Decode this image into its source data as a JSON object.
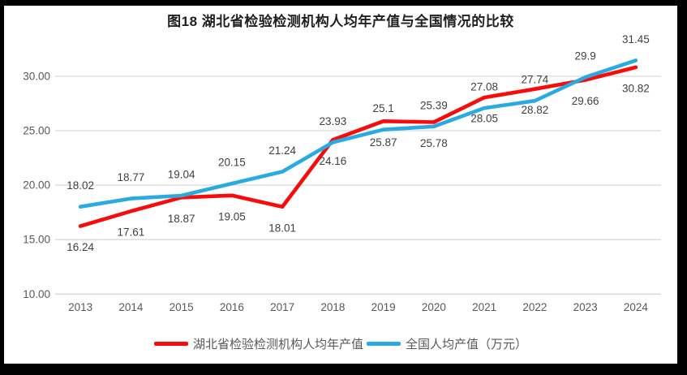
{
  "chart_data": {
    "type": "line",
    "title": "图18 湖北省检验检测机构人均年产值与全国情况的比较",
    "categories": [
      "2013",
      "2014",
      "2015",
      "2016",
      "2017",
      "2018",
      "2019",
      "2020",
      "2021",
      "2022",
      "2023",
      "2024"
    ],
    "series": [
      {
        "name": "湖北省检验检测机构人均年产值",
        "color": "#F90B0B",
        "label_position": "below",
        "values": [
          16.24,
          17.61,
          18.87,
          19.05,
          18.01,
          24.16,
          25.87,
          25.78,
          28.05,
          28.82,
          29.66,
          30.82
        ]
      },
      {
        "name": "全国人均产值（万元）",
        "color": "#29ABE2",
        "label_position": "above",
        "values": [
          18.02,
          18.77,
          19.04,
          20.15,
          21.24,
          23.93,
          25.1,
          25.39,
          27.08,
          27.74,
          29.9,
          31.45
        ]
      }
    ],
    "xlabel": "",
    "ylabel": "",
    "ylim": [
      10,
      33.5
    ],
    "yticks": [
      10,
      15,
      20,
      25,
      30
    ],
    "ytick_labels": [
      "10.00",
      "15.00",
      "20.00",
      "25.00",
      "30.00"
    ],
    "grid": true,
    "legend_position": "bottom",
    "colors": {
      "gridline": "#D9D9D9",
      "axis_text": "#595959",
      "data_label_text": "#404040",
      "title_text": "#1F1F1F",
      "panel_background": "#FFFFFF",
      "frame": "#000000"
    }
  }
}
